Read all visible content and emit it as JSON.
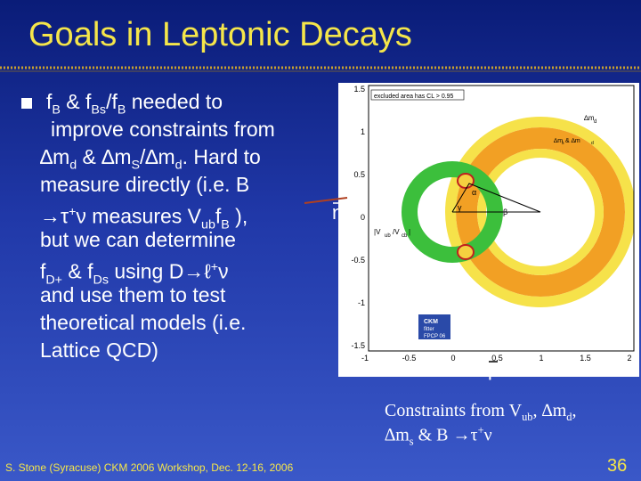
{
  "title": "Goals in Leptonic Decays",
  "bullet": [
    [
      {
        "text": "f"
      },
      {
        "sub": "B"
      },
      {
        "text": " &  f"
      },
      {
        "sub": "Bs"
      },
      {
        "text": "/f"
      },
      {
        "sub": "B"
      },
      {
        "text": " needed to"
      }
    ],
    [
      {
        "text": "improve constraints from"
      }
    ],
    [
      {
        "text": "∆m"
      },
      {
        "sub": "d"
      },
      {
        "text": " & ∆m"
      },
      {
        "sub": "S"
      },
      {
        "text": "/∆m"
      },
      {
        "sub": "d"
      },
      {
        "text": ".  Hard to"
      }
    ],
    [
      {
        "text": "measure directly (i.e. B"
      }
    ],
    [
      {
        "text": "→τ"
      },
      {
        "sup": "+"
      },
      {
        "text": "ν measures V"
      },
      {
        "sub": "ub"
      },
      {
        "text": "f"
      },
      {
        "sub": "B"
      },
      {
        "text": " ),"
      }
    ],
    [
      {
        "text": "but we can determine"
      }
    ],
    [
      {
        "text": "f"
      },
      {
        "sub": "D+"
      },
      {
        "text": " & f"
      },
      {
        "sub": "Ds"
      },
      {
        "text": " using D→ℓ"
      },
      {
        "sup": "+"
      },
      {
        "text": "ν"
      }
    ],
    [
      {
        "text": "and use them to test"
      }
    ],
    [
      {
        "text": "theoretical models (i.e."
      }
    ],
    [
      {
        "text": "Lattice QCD)"
      }
    ]
  ],
  "figure": {
    "yticks": [
      "1.5",
      "1",
      "0.5",
      "0",
      "-0.5",
      "-1",
      "-1.5"
    ],
    "xticks": [
      "-1",
      "-0.5",
      "0",
      "0.5",
      "1",
      "1.5",
      "2"
    ],
    "legend": "excluded area has CL > 0.95",
    "label_dmd": "∆m",
    "label_dmd_sub": "d",
    "label_dms": "∆m",
    "label_dms_sub": "s",
    "label_dms_and": " & ∆m",
    "label_dms_sub2": "d",
    "label_vub": "|V",
    "label_vub_sub": "ub",
    "label_vub_mid": "/V",
    "label_vub_sub2": "cb",
    "label_vub_end": "|",
    "alpha": "α",
    "beta": "β",
    "gamma": "γ",
    "logo_top": "CKM",
    "logo_mid": "fitter",
    "logo_bottom": "FPCP 06",
    "eta": "η",
    "rho": "ρ"
  },
  "caption": [
    [
      {
        "text": "Constraints from V"
      },
      {
        "sub": "ub"
      },
      {
        "text": ", ∆m"
      },
      {
        "sub": "d"
      },
      {
        "text": ","
      }
    ],
    [
      {
        "text": "∆m"
      },
      {
        "sub": "s"
      },
      {
        "text": " & B →τ"
      },
      {
        "sup": "+"
      },
      {
        "text": "ν"
      }
    ]
  ],
  "footer": "S. Stone (Syracuse) CKM 2006 Workshop, Dec. 12-16, 2006",
  "page_number": "36"
}
